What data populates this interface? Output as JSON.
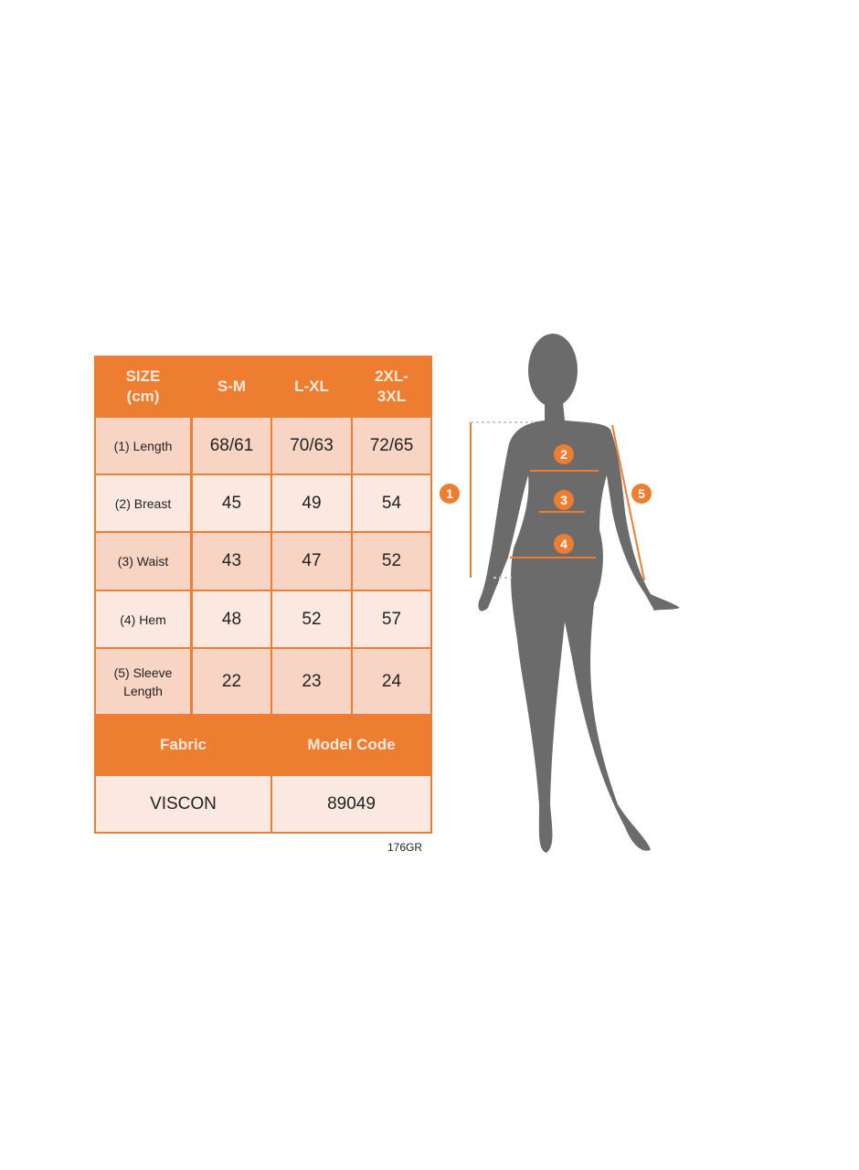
{
  "table": {
    "header": [
      "SIZE\n(cm)",
      "S-M",
      "L-XL",
      "2XL-\n3XL"
    ],
    "rows": [
      {
        "label": "(1) Length",
        "values": [
          "68/61",
          "70/63",
          "72/65"
        ]
      },
      {
        "label": "(2) Breast",
        "values": [
          "45",
          "49",
          "54"
        ]
      },
      {
        "label": "(3) Waist",
        "values": [
          "43",
          "47",
          "52"
        ]
      },
      {
        "label": "(4) Hem",
        "values": [
          "48",
          "52",
          "57"
        ]
      },
      {
        "label": "(5) Sleeve\nLength",
        "values": [
          "22",
          "23",
          "24"
        ]
      }
    ],
    "footer_headers": [
      "Fabric",
      "Model Code"
    ],
    "footer_values": [
      "VISCON",
      "89049"
    ]
  },
  "code": "176GR",
  "figure": {
    "markers": [
      "1",
      "2",
      "3",
      "4",
      "5"
    ]
  },
  "colors": {
    "accent": "#ed7d31",
    "row_dark": "#f7d4c4",
    "row_light": "#fbe8e0",
    "silhouette": "#6b6b6b"
  }
}
